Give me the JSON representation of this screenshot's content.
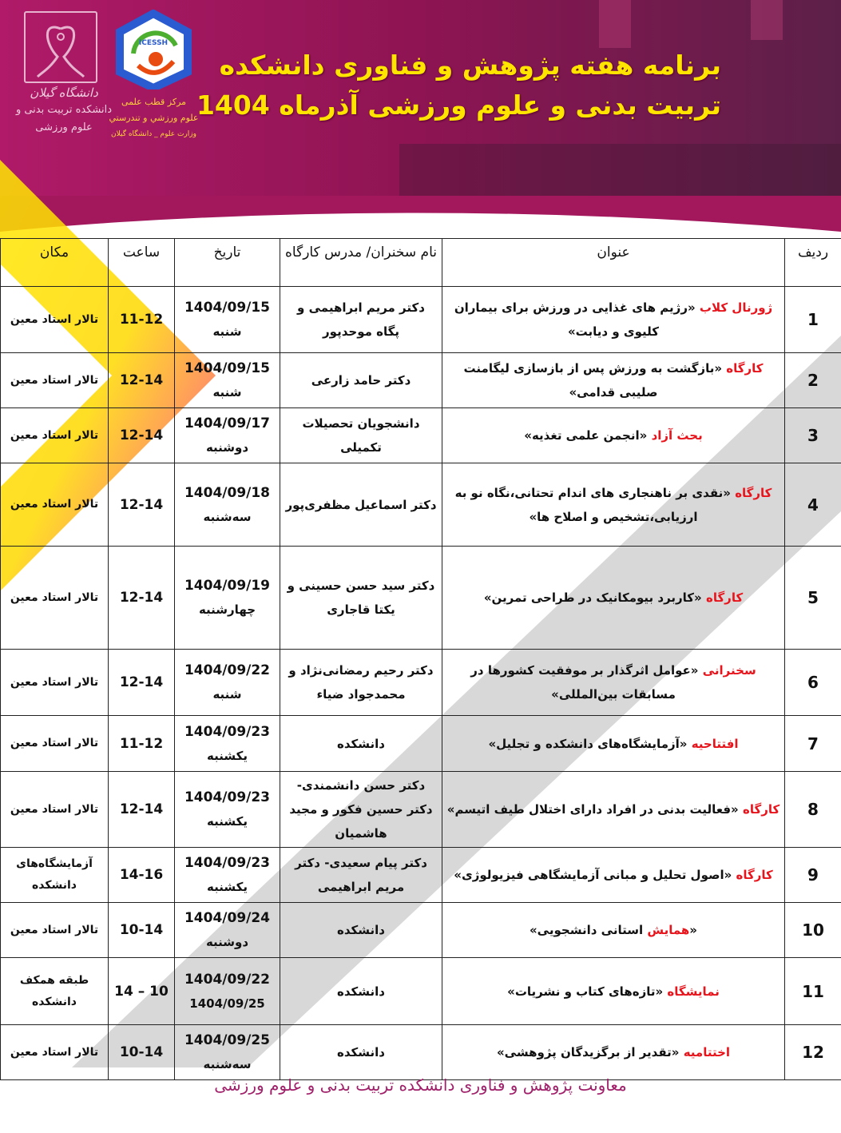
{
  "header": {
    "title_line1": "برنامه هفته پژوهش و فناوری دانشکده",
    "title_line2": "تربیت بدنی و علوم ورزشی آذرماه 1404",
    "logo_left": {
      "name": "دانشگاه گیلان",
      "line1": "دانشکده تربیت بدنی و",
      "line2": "علوم ورزشی"
    },
    "logo_right": {
      "badge": "ICESSH",
      "line1": "مرکز قطب علمی",
      "line2": "علوم ورزشي و تندرستي",
      "line3": "وزارت علوم _ دانشگاه گیلان"
    },
    "colors": {
      "banner": "#a0175f",
      "title": "#ffe400",
      "highlight": "#e8141c"
    }
  },
  "table": {
    "headers": [
      "ردیف",
      "عنوان",
      "نام سخنران/ مدرس کارگاه",
      "تاریخ",
      "ساعت",
      "مکان"
    ],
    "rows": [
      {
        "n": "1",
        "type": "ژورنال کلاب",
        "title": "«رژیم های غذایی در ورزش برای بیماران کلیوی و دیابت»",
        "speaker": "دکتر مریم ابراهیمی و پگاه موحدپور",
        "date": "1404/09/15",
        "day": "شنبه",
        "time": "11-12",
        "place": "تالار استاد معین"
      },
      {
        "n": "2",
        "type": "کارگاه",
        "title": "«بازگشت به ورزش پس از بازسازی لیگامنت صلیبی قدامی»",
        "speaker": "دکتر حامد زارعی",
        "date": "1404/09/15",
        "day": "شنبه",
        "time": "12-14",
        "place": "تالار استاد معین"
      },
      {
        "n": "3",
        "type": "بحث آزاد",
        "title": "«انجمن علمی تغذیه»",
        "speaker": "دانشجویان تحصیلات تکمیلی",
        "date": "1404/09/17",
        "day": "دوشنبه",
        "time": "12-14",
        "place": "تالار استاد معین"
      },
      {
        "n": "4",
        "type": "کارگاه",
        "title": "«نقدی بر ناهنجاری های اندام تحتانی،نگاه نو به ارزیابی،تشخیص و اصلاح ها»",
        "speaker": "دکتر اسماعیل مظفری‌پور",
        "date": "1404/09/18",
        "day": "سه‌شنبه",
        "time": "12-14",
        "place": "تالار استاد معین"
      },
      {
        "n": "5",
        "type": "کارگاه",
        "title": "«کاربرد بیومکانیک در طراحی تمرین»",
        "speaker": "دکتر سید حسن حسینی و یکتا قاجاری",
        "date": "1404/09/19",
        "day": "چهارشنبه",
        "time": "12-14",
        "place": "تالار استاد معین"
      },
      {
        "n": "6",
        "type": "سخنرانی",
        "title": "«عوامل اثرگذار بر موفقیت کشورها در مسابقات بین‌المللی»",
        "speaker": "دکتر رحیم رمضانی‌نژاد و محمدجواد ضیاء",
        "date": "1404/09/22",
        "day": "شنبه",
        "time": "12-14",
        "place": "تالار استاد معین"
      },
      {
        "n": "7",
        "type": "افتتاحیه",
        "title": "«آزمایشگاه‌های دانشکده و تجلیل»",
        "speaker": "دانشکده",
        "date": "1404/09/23",
        "day": "یکشنبه",
        "time": "11-12",
        "place": "تالار استاد معین"
      },
      {
        "n": "8",
        "type": "کارگاه",
        "title": "«فعالیت بدنی در افراد دارای اختلال طیف اتیسم»",
        "speaker": "دکتر حسن دانشمندی- دکتر حسین فکور و مجید هاشمیان",
        "date": "1404/09/23",
        "day": "یکشنبه",
        "time": "12-14",
        "place": "تالار استاد معین"
      },
      {
        "n": "9",
        "type": "کارگاه",
        "title": "«اصول تحلیل و مبانی آزمایشگاهی فیزیولوژی»",
        "speaker": "دکتر پیام سعیدی- دکتر مریم ابراهیمی",
        "date": "1404/09/23",
        "day": "یکشنبه",
        "time": "14-16",
        "place": "آزمایشگاه‌های دانشکده"
      },
      {
        "n": "10",
        "type": "همایش",
        "title_pre": "«",
        "title": "استانی دانشجویی»",
        "speaker": "دانشکده",
        "date": "1404/09/24",
        "day": "دوشنبه",
        "time": "10-14",
        "place": "تالار استاد معین"
      },
      {
        "n": "11",
        "type": "نمایشگاه",
        "title": "«تازه‌های کتاب و نشریات»",
        "speaker": "دانشکده",
        "date": "1404/09/22",
        "day": "1404/09/25",
        "time": "10 – 14",
        "place": "طبقه همکف دانشکده"
      },
      {
        "n": "12",
        "type": "اختتامیه",
        "title": "«تقدیر از برگزیدگان پژوهشی»",
        "speaker": "دانشکده",
        "date": "1404/09/25",
        "day": "سه‌شنبه",
        "time": "10-14",
        "place": "تالار استاد معین"
      }
    ]
  },
  "footer": "معاونت پژوهش و فناوری دانشکده تربیت بدنی و علوم ورزشی"
}
